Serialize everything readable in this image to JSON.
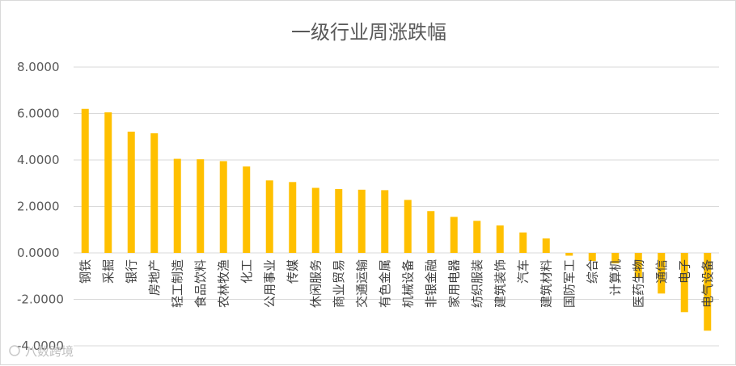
{
  "chart_data": {
    "type": "bar",
    "title": "一级行业周涨跌幅",
    "xlabel": "",
    "ylabel": "",
    "ylim": [
      -4,
      8
    ],
    "yticks": [
      8,
      6,
      4,
      2,
      0,
      -2,
      -4
    ],
    "ytick_labels": [
      "8.0000",
      "6.0000",
      "4.0000",
      "2.0000",
      "0.0000",
      "-2.0000",
      "-4.0000"
    ],
    "grid": true,
    "legend": "none",
    "bar_color": "#ffc000",
    "categories": [
      "钢铁",
      "采掘",
      "银行",
      "房地产",
      "轻工制造",
      "食品饮料",
      "农林牧渔",
      "化工",
      "公用事业",
      "传媒",
      "休闲服务",
      "商业贸易",
      "交通运输",
      "有色金属",
      "机械设备",
      "非银金融",
      "家用电器",
      "纺织服装",
      "建筑装饰",
      "汽车",
      "建筑材料",
      "国防军工",
      "综合",
      "计算机",
      "医药生物",
      "通信",
      "电子",
      "电气设备"
    ],
    "values": [
      6.2,
      6.05,
      5.22,
      5.15,
      4.05,
      4.03,
      3.95,
      3.72,
      3.12,
      3.05,
      2.8,
      2.75,
      2.72,
      2.7,
      2.28,
      1.8,
      1.55,
      1.38,
      1.18,
      0.88,
      0.62,
      -0.12,
      -0.35,
      -0.45,
      -1.05,
      -1.75,
      -2.55,
      -3.35
    ]
  },
  "watermark": "八数跨境"
}
